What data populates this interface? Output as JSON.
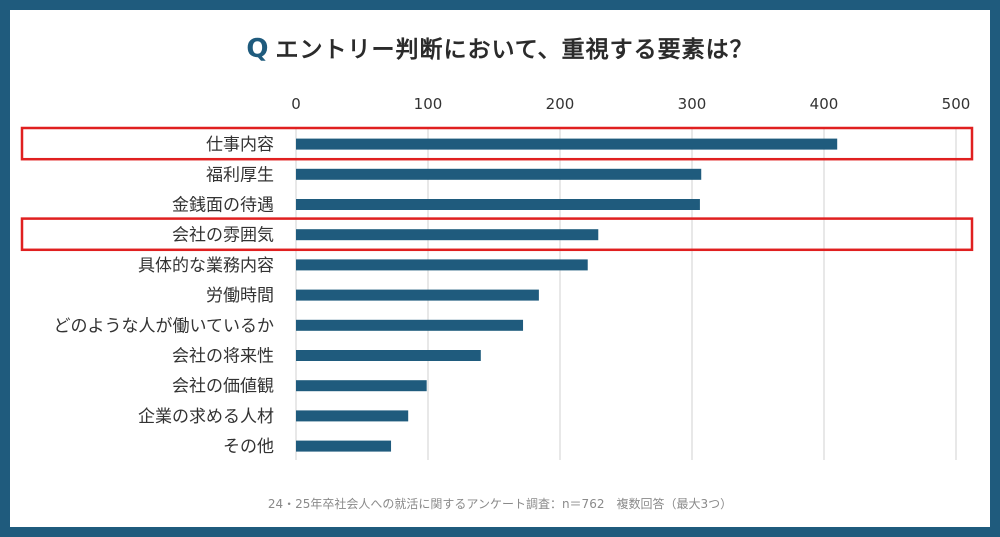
{
  "title": {
    "prefix": "Q",
    "text": "エントリー判断において、重視する要素は？"
  },
  "footnote": "24・25年卒社会人への就活に関するアンケート調査：n＝762　複数回答（最大3つ）",
  "colors": {
    "frame": "#1f5b7d",
    "bar": "#1f5b7d",
    "grid": "#d9d9d9",
    "highlight": "#e02020"
  },
  "chart_data": {
    "type": "bar",
    "orientation": "horizontal",
    "categories": [
      "仕事内容",
      "福利厚生",
      "金銭面の待遇",
      "会社の雰囲気",
      "具体的な業務内容",
      "労働時間",
      "どのような人が働いているか",
      "会社の将来性",
      "会社の価値観",
      "企業の求める人材",
      "その他"
    ],
    "values": [
      410,
      307,
      306,
      229,
      221,
      184,
      172,
      140,
      99,
      85,
      72
    ],
    "xlim": [
      0,
      500
    ],
    "xticks": [
      0,
      100,
      200,
      300,
      400,
      500
    ],
    "highlighted_categories": [
      "仕事内容",
      "会社の雰囲気"
    ],
    "grid": true,
    "legend": "none",
    "title": "エントリー判断において、重視する要素は？",
    "xlabel": "",
    "ylabel": ""
  }
}
